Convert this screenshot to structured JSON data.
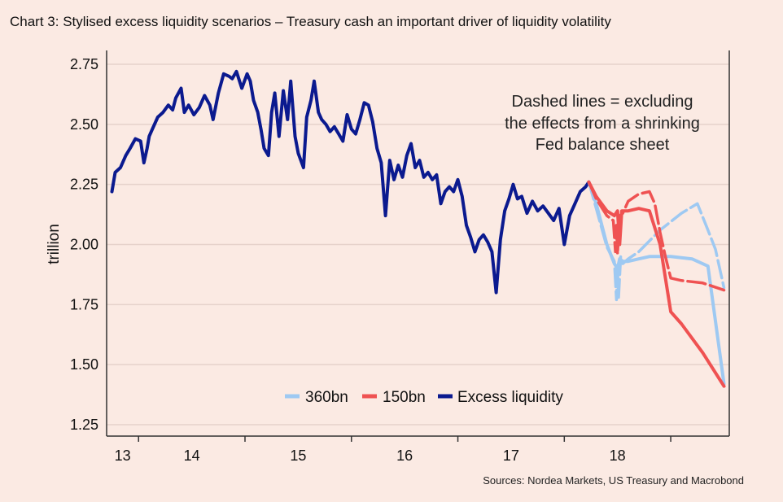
{
  "header": {
    "title": "Chart 3: Stylised excess liquidity scenarios – Treasury cash an important driver of liquidity volatility"
  },
  "footer": {
    "source": "Sources: Nordea Markets, US Treasury and Macrobond"
  },
  "colors": {
    "background": "#fbeae3",
    "excess": "#0b1a8f",
    "s150": "#ef5252",
    "s360": "#9ec9f2",
    "grid": "#e6d2cb",
    "axis": "#333333"
  },
  "chart_data": {
    "type": "line",
    "title": "Chart 3: Stylised excess liquidity scenarios – Treasury cash an important driver of liquidity volatility",
    "xlabel": "",
    "ylabel": "trillion",
    "xlim": [
      12.7,
      18.55
    ],
    "ylim": [
      1.2,
      2.8
    ],
    "y_ticks": [
      1.25,
      1.5,
      1.75,
      2.0,
      2.25,
      2.5,
      2.75
    ],
    "y_tick_labels": [
      "1.25",
      "1.50",
      "1.75",
      "2.00",
      "2.25",
      "2.50",
      "2.75"
    ],
    "x_boundaries": [
      13.0,
      14.0,
      15.0,
      16.0,
      17.0,
      18.0
    ],
    "x_tick_labels": [
      "13",
      "14",
      "15",
      "16",
      "17",
      "18"
    ],
    "x_tick_label_positions": [
      12.85,
      13.5,
      14.5,
      15.5,
      16.5,
      17.5
    ],
    "grid": "horizontal",
    "annotation": [
      "Dashed lines = excluding",
      "the effects from a shrinking",
      "Fed balance sheet"
    ],
    "legend": [
      {
        "label": "360bn",
        "key": "s360"
      },
      {
        "label": "150bn",
        "key": "s150"
      },
      {
        "label": "Excess liquidity",
        "key": "excess"
      }
    ],
    "legend_position": "bottom-center",
    "series": [
      {
        "name": "Excess liquidity",
        "key": "excess",
        "style": "solid",
        "x": [
          12.75,
          12.78,
          12.83,
          12.88,
          12.92,
          12.97,
          13.02,
          13.05,
          13.08,
          13.1,
          13.13,
          13.18,
          13.23,
          13.28,
          13.32,
          13.35,
          13.4,
          13.43,
          13.47,
          13.52,
          13.57,
          13.62,
          13.67,
          13.7,
          13.75,
          13.8,
          13.85,
          13.88,
          13.92,
          13.97,
          14.02,
          14.05,
          14.08,
          14.12,
          14.15,
          14.18,
          14.22,
          14.25,
          14.28,
          14.32,
          14.36,
          14.4,
          14.43,
          14.47,
          14.5,
          14.55,
          14.58,
          14.62,
          14.65,
          14.69,
          14.72,
          14.76,
          14.8,
          14.84,
          14.88,
          14.92,
          14.96,
          15.0,
          15.04,
          15.08,
          15.12,
          15.16,
          15.2,
          15.24,
          15.28,
          15.32,
          15.36,
          15.4,
          15.44,
          15.48,
          15.52,
          15.56,
          15.6,
          15.64,
          15.68,
          15.72,
          15.76,
          15.8,
          15.84,
          15.88,
          15.92,
          15.96,
          16.0,
          16.04,
          16.08,
          16.12,
          16.16,
          16.2,
          16.24,
          16.28,
          16.32,
          16.36,
          16.4,
          16.44,
          16.48,
          16.52,
          16.56,
          16.6,
          16.65,
          16.7,
          16.75,
          16.8,
          16.85,
          16.9,
          16.95,
          17.0,
          17.05,
          17.1,
          17.15,
          17.2,
          17.23
        ],
        "values": [
          2.22,
          2.3,
          2.32,
          2.37,
          2.4,
          2.44,
          2.43,
          2.34,
          2.4,
          2.45,
          2.48,
          2.53,
          2.55,
          2.58,
          2.56,
          2.61,
          2.65,
          2.55,
          2.58,
          2.54,
          2.57,
          2.62,
          2.58,
          2.52,
          2.63,
          2.71,
          2.7,
          2.69,
          2.72,
          2.65,
          2.71,
          2.68,
          2.6,
          2.55,
          2.48,
          2.4,
          2.37,
          2.55,
          2.63,
          2.45,
          2.64,
          2.52,
          2.68,
          2.45,
          2.38,
          2.32,
          2.53,
          2.6,
          2.68,
          2.55,
          2.52,
          2.5,
          2.47,
          2.49,
          2.46,
          2.43,
          2.54,
          2.48,
          2.46,
          2.52,
          2.59,
          2.58,
          2.51,
          2.4,
          2.34,
          2.12,
          2.35,
          2.27,
          2.33,
          2.28,
          2.37,
          2.42,
          2.32,
          2.35,
          2.28,
          2.3,
          2.27,
          2.29,
          2.17,
          2.22,
          2.24,
          2.22,
          2.27,
          2.2,
          2.08,
          2.03,
          1.97,
          2.02,
          2.04,
          2.01,
          1.97,
          1.8,
          2.02,
          2.14,
          2.19,
          2.25,
          2.19,
          2.2,
          2.13,
          2.18,
          2.14,
          2.16,
          2.13,
          2.1,
          2.15,
          2.0,
          2.12,
          2.17,
          2.22,
          2.24,
          2.26
        ]
      },
      {
        "name": "360bn",
        "key": "s360",
        "style": "solid",
        "x": [
          17.23,
          17.3,
          17.4,
          17.47,
          17.5,
          17.52,
          17.55,
          17.6,
          17.7,
          17.8,
          18.0,
          18.2,
          18.35,
          18.5
        ],
        "values": [
          2.26,
          2.17,
          2.0,
          1.92,
          1.9,
          1.94,
          1.93,
          1.93,
          1.94,
          1.95,
          1.95,
          1.94,
          1.91,
          1.42
        ]
      },
      {
        "name": "360bn (ex. balance sheet)",
        "key": "s360",
        "style": "dashed",
        "x": [
          17.23,
          17.3,
          17.4,
          17.47,
          17.49,
          17.5,
          17.51,
          17.53,
          17.55,
          17.6,
          17.7,
          17.9,
          18.1,
          18.25,
          18.35,
          18.42,
          18.5
        ],
        "values": [
          2.26,
          2.15,
          1.99,
          1.93,
          1.77,
          1.9,
          1.78,
          1.95,
          1.92,
          1.94,
          1.97,
          2.06,
          2.13,
          2.17,
          2.06,
          1.98,
          1.82
        ]
      },
      {
        "name": "150bn",
        "key": "s150",
        "style": "solid",
        "x": [
          17.23,
          17.3,
          17.4,
          17.47,
          17.5,
          17.52,
          17.54,
          17.6,
          17.7,
          17.8,
          17.9,
          18.0,
          18.1,
          18.3,
          18.5
        ],
        "values": [
          2.26,
          2.2,
          2.14,
          2.12,
          2.14,
          2.0,
          2.14,
          2.14,
          2.15,
          2.14,
          2.0,
          1.72,
          1.67,
          1.55,
          1.41
        ]
      },
      {
        "name": "150bn (ex. balance sheet)",
        "key": "s150",
        "style": "dashed",
        "x": [
          17.23,
          17.3,
          17.4,
          17.46,
          17.48,
          17.49,
          17.5,
          17.52,
          17.55,
          17.6,
          17.7,
          17.8,
          17.85,
          17.9,
          17.95,
          18.0,
          18.1,
          18.3,
          18.5
        ],
        "values": [
          2.26,
          2.19,
          2.12,
          2.1,
          1.97,
          2.08,
          1.96,
          2.12,
          2.13,
          2.18,
          2.21,
          2.22,
          2.17,
          2.05,
          1.95,
          1.86,
          1.85,
          1.84,
          1.81
        ]
      }
    ]
  }
}
